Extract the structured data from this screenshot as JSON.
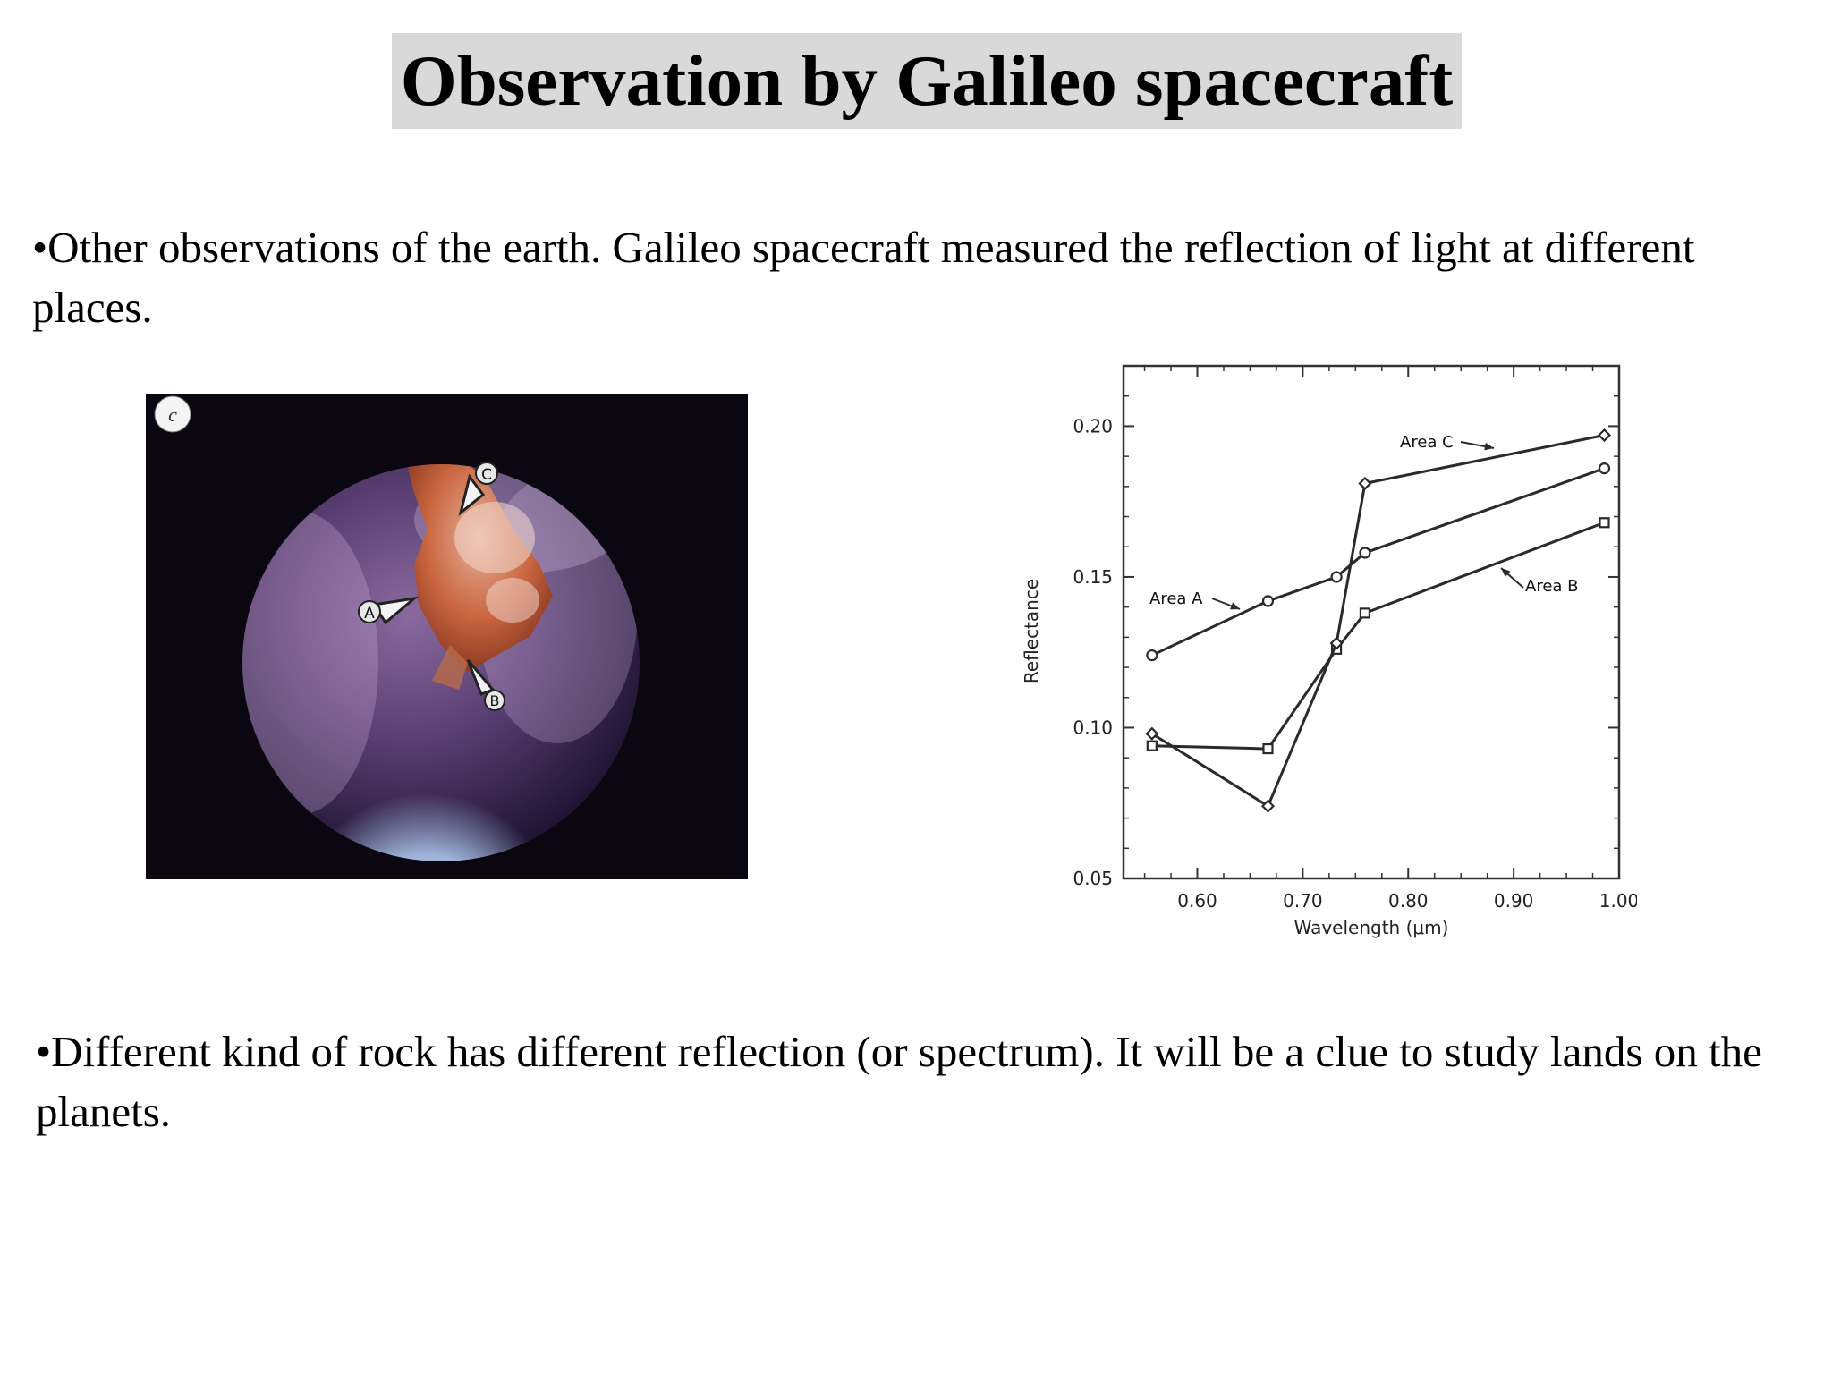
{
  "slide": {
    "title": "Observation by Galileo spacecraft",
    "bullet_1": "•Other observations of the earth. Galileo spacecraft measured the reflection of light at different places.",
    "bullet_2": "•Different kind of rock has different reflection (or spectrum). It will be a clue to study lands on the planets."
  },
  "photo": {
    "panel_label": "c",
    "markers": [
      "A",
      "B",
      "C"
    ]
  },
  "chart_data": {
    "type": "line",
    "title": "",
    "xlabel": "Wavelength (μm)",
    "ylabel": "Reflectance",
    "xlim": [
      0.53,
      1.0
    ],
    "ylim": [
      0.05,
      0.22
    ],
    "xticks": [
      0.6,
      0.7,
      0.8,
      0.9,
      1.0
    ],
    "xtick_labels": [
      "0.60",
      "0.70",
      "0.80",
      "0.90",
      "1.00"
    ],
    "yticks": [
      0.05,
      0.1,
      0.15,
      0.2
    ],
    "ytick_labels": [
      "0.05",
      "0.10",
      "0.15",
      "0.20"
    ],
    "grid": false,
    "series": [
      {
        "name": "Area A",
        "marker": "circle",
        "x": [
          0.557,
          0.667,
          0.732,
          0.759,
          0.986
        ],
        "y": [
          0.124,
          0.142,
          0.15,
          0.158,
          0.186
        ]
      },
      {
        "name": "Area B",
        "marker": "square",
        "x": [
          0.557,
          0.667,
          0.732,
          0.759,
          0.986
        ],
        "y": [
          0.094,
          0.093,
          0.126,
          0.138,
          0.168
        ]
      },
      {
        "name": "Area C",
        "marker": "diamond",
        "x": [
          0.557,
          0.667,
          0.732,
          0.759,
          0.986
        ],
        "y": [
          0.098,
          0.074,
          0.128,
          0.181,
          0.197
        ]
      }
    ],
    "annotations": [
      {
        "text": "Area A",
        "series": "Area A"
      },
      {
        "text": "Area B",
        "series": "Area B"
      },
      {
        "text": "Area C",
        "series": "Area C"
      }
    ],
    "colors": {
      "line": "#2a2a2a",
      "axis": "#333333",
      "background": "#ffffff"
    }
  }
}
